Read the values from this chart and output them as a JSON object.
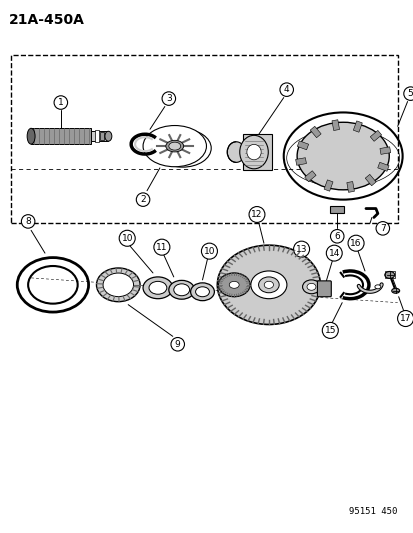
{
  "title": "21A-450A",
  "watermark": "95151 450",
  "bg": "#ffffff",
  "lc": "#000000",
  "gray1": "#cccccc",
  "gray2": "#999999",
  "gray3": "#666666",
  "gray4": "#444444"
}
